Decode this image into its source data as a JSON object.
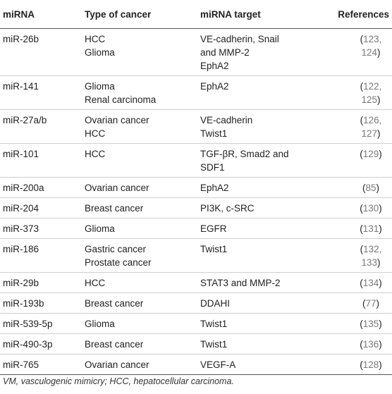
{
  "headers": [
    "miRNA",
    "Type of cancer",
    "miRNA target",
    "References"
  ],
  "rows": [
    {
      "mirna": "miR-26b",
      "cancer": [
        "HCC",
        "Glioma"
      ],
      "target": [
        "VE-cadherin, Snail",
        "and MMP-2",
        "EphA2"
      ],
      "ref": {
        "open": "(",
        "nums": "123, 124",
        "close": ")"
      }
    },
    {
      "mirna": "miR-141",
      "cancer": [
        "Glioma",
        "Renal carcinoma"
      ],
      "target": [
        "EphA2"
      ],
      "ref": {
        "open": "(",
        "nums": "122, 125",
        "close": ")"
      }
    },
    {
      "mirna": "miR-27a/b",
      "cancer": [
        "Ovarian cancer",
        "HCC"
      ],
      "target": [
        "VE-cadherin",
        "Twist1"
      ],
      "ref": {
        "open": "(",
        "nums": "126, 127",
        "close": ")"
      }
    },
    {
      "mirna": "miR-101",
      "cancer": [
        "HCC"
      ],
      "target": [
        "TGF-βR, Smad2 and",
        "SDF1"
      ],
      "ref": {
        "open": "(",
        "nums": "129",
        "close": ")"
      }
    },
    {
      "mirna": "miR-200a",
      "cancer": [
        "Ovarian cancer"
      ],
      "target": [
        "EphA2"
      ],
      "ref": {
        "open": "(",
        "nums": "85",
        "close": ")"
      }
    },
    {
      "mirna": "miR-204",
      "cancer": [
        "Breast cancer"
      ],
      "target": [
        "PI3K, c-SRC"
      ],
      "ref": {
        "open": "(",
        "nums": "130",
        "close": ")"
      }
    },
    {
      "mirna": "miR-373",
      "cancer": [
        "Glioma"
      ],
      "target": [
        "EGFR"
      ],
      "ref": {
        "open": "(",
        "nums": "131",
        "close": ")"
      }
    },
    {
      "mirna": "miR-186",
      "cancer": [
        "Gastric cancer",
        "Prostate cancer"
      ],
      "target": [
        "Twist1"
      ],
      "ref": {
        "open": "(",
        "nums": "132, 133",
        "close": ")"
      }
    },
    {
      "mirna": "miR-29b",
      "cancer": [
        "HCC"
      ],
      "target": [
        "STAT3 and MMP-2"
      ],
      "ref": {
        "open": "(",
        "nums": "134",
        "close": ")"
      }
    },
    {
      "mirna": "miR-193b",
      "cancer": [
        "Breast cancer"
      ],
      "target": [
        "DDAHI"
      ],
      "ref": {
        "open": "(",
        "nums": "77",
        "close": ")"
      }
    },
    {
      "mirna": "miR-539-5p",
      "cancer": [
        "Glioma"
      ],
      "target": [
        "Twist1"
      ],
      "ref": {
        "open": "(",
        "nums": "135",
        "close": ")"
      }
    },
    {
      "mirna": "miR-490-3p",
      "cancer": [
        "Breast cancer"
      ],
      "target": [
        "Twist1"
      ],
      "ref": {
        "open": "(",
        "nums": "136",
        "close": ")"
      }
    },
    {
      "mirna": "miR-765",
      "cancer": [
        "Ovarian cancer"
      ],
      "target": [
        "VEGF-A"
      ],
      "ref": {
        "open": "(",
        "nums": "128",
        "close": ")"
      }
    }
  ],
  "footnote": "VM, vasculogenic mimicry; HCC, hepatocellular carcinoma."
}
